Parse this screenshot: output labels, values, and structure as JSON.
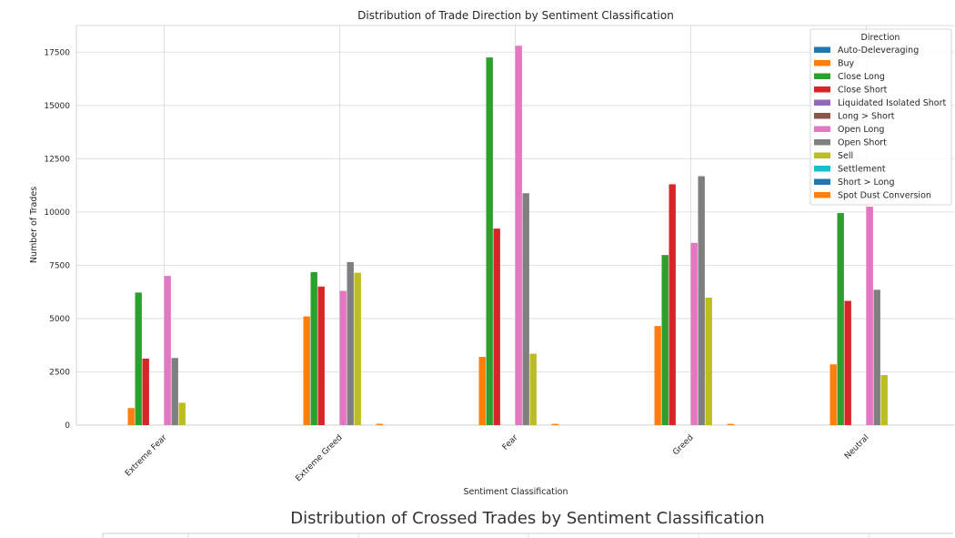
{
  "chart_data": {
    "type": "bar",
    "title": "Distribution of Trade Direction by Sentiment Classification",
    "xlabel": "Sentiment Classification",
    "ylabel": "Number of Trades",
    "ylim": [
      0,
      18750
    ],
    "yticks": [
      0,
      2500,
      5000,
      7500,
      10000,
      12500,
      15000,
      17500
    ],
    "grid": true,
    "legend_title": "Direction",
    "legend_position": "top-right",
    "categories": [
      "Extreme Fear",
      "Extreme Greed",
      "Fear",
      "Greed",
      "Neutral"
    ],
    "series": [
      {
        "name": "Auto-Deleveraging",
        "color": "#1f77b4",
        "values": [
          0,
          0,
          0,
          0,
          0
        ]
      },
      {
        "name": "Buy",
        "color": "#ff7f0e",
        "values": [
          800,
          5100,
          3200,
          4650,
          2850
        ]
      },
      {
        "name": "Close Long",
        "color": "#2ca02c",
        "values": [
          6220,
          7180,
          17250,
          7980,
          9950
        ]
      },
      {
        "name": "Close Short",
        "color": "#d62728",
        "values": [
          3120,
          6500,
          9220,
          11300,
          5830
        ]
      },
      {
        "name": "Liquidated Isolated Short",
        "color": "#9467bd",
        "values": [
          0,
          0,
          0,
          0,
          0
        ]
      },
      {
        "name": "Long > Short",
        "color": "#8c564b",
        "values": [
          0,
          0,
          0,
          0,
          0
        ]
      },
      {
        "name": "Open Long",
        "color": "#e377c2",
        "values": [
          7000,
          6300,
          17800,
          8550,
          10250
        ]
      },
      {
        "name": "Open Short",
        "color": "#7f7f7f",
        "values": [
          3150,
          7650,
          10880,
          11680,
          6350
        ]
      },
      {
        "name": "Sell",
        "color": "#bcbd22",
        "values": [
          1050,
          7150,
          3350,
          5980,
          2350
        ]
      },
      {
        "name": "Settlement",
        "color": "#17becf",
        "values": [
          0,
          0,
          0,
          0,
          0
        ]
      },
      {
        "name": "Short > Long",
        "color": "#1f77b4",
        "values": [
          0,
          0,
          0,
          0,
          0
        ]
      },
      {
        "name": "Spot Dust Conversion",
        "color": "#ff7f0e",
        "values": [
          0,
          60,
          60,
          60,
          0
        ]
      }
    ]
  },
  "second_chart": {
    "title": "Distribution of Crossed Trades by Sentiment Classification"
  }
}
